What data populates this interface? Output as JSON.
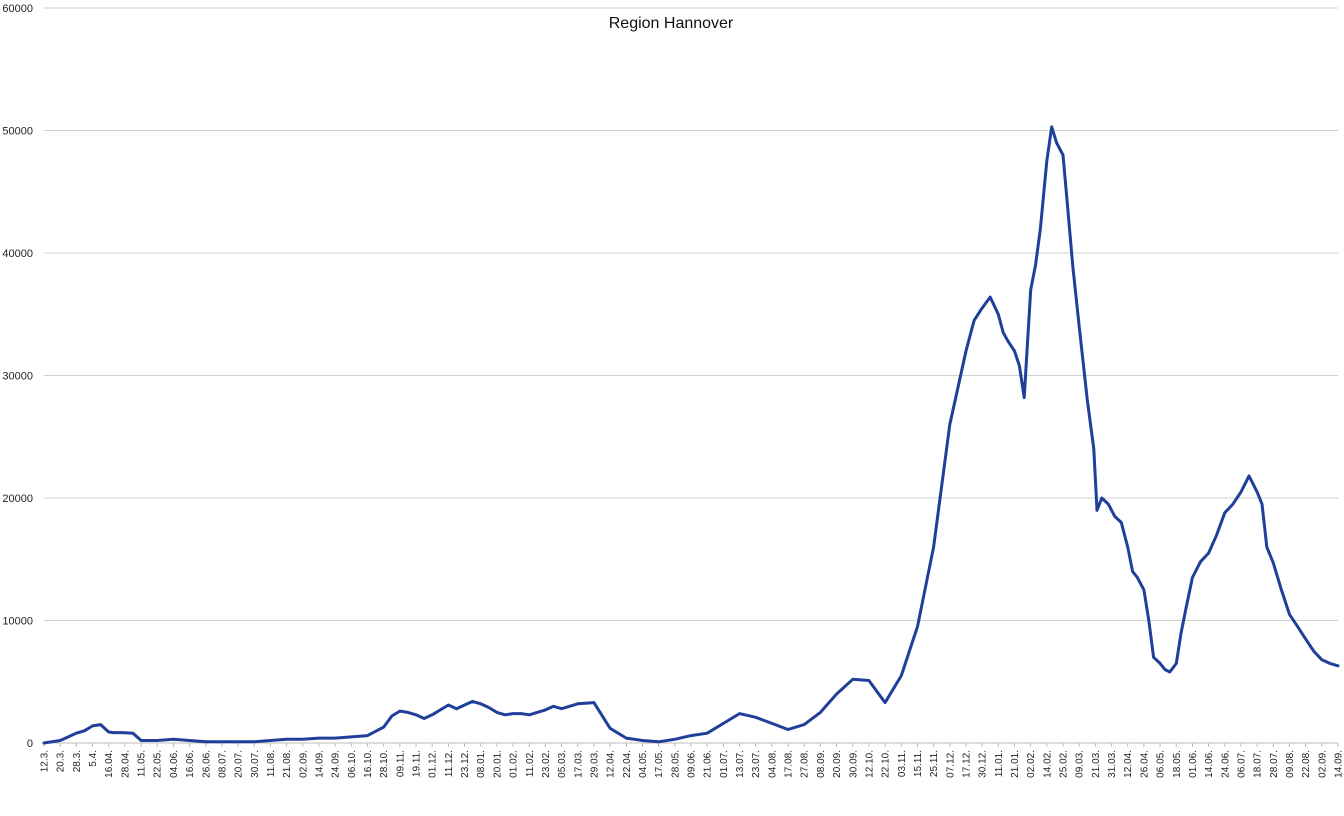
{
  "chart_data": {
    "type": "line",
    "title": "Region Hannover",
    "xlabel": "",
    "ylabel": "",
    "ylim": [
      0,
      60000
    ],
    "yticks": [
      0,
      10000,
      20000,
      30000,
      40000,
      50000,
      60000
    ],
    "grid": true,
    "legend": "none",
    "line_color": "#1f3f9a",
    "x_tick_labels": [
      "12.3.",
      "20.3.",
      "28.3.",
      "5.4.",
      "16.04.",
      "28.04.",
      "11.05.",
      "22.05.",
      "04.06.",
      "16.06.",
      "26.06.",
      "08.07.",
      "20.07.",
      "30.07.",
      "11.08.",
      "21.08.",
      "02.09.",
      "14.09.",
      "24.09.",
      "06.10.",
      "16.10.",
      "28.10.",
      "09.11.",
      "19.11.",
      "01.12.",
      "11.12.",
      "23.12.",
      "08.01.",
      "20.01.",
      "01.02.",
      "11.02.",
      "23.02.",
      "05.03.",
      "17.03.",
      "29.03.",
      "12.04.",
      "22.04.",
      "04.05.",
      "17.05.",
      "28.05.",
      "09.06.",
      "21.06.",
      "01.07.",
      "13.07.",
      "23.07.",
      "04.08.",
      "17.08.",
      "27.08.",
      "08.09.",
      "20.09.",
      "30.09.",
      "12.10.",
      "22.10.",
      "03.11.",
      "15.11.",
      "25.11.",
      "07.12.",
      "17.12.",
      "30.12.",
      "11.01.",
      "21.01.",
      "02.02.",
      "14.02.",
      "25.02.",
      "09.03.",
      "21.03.",
      "31.03.",
      "12.04.",
      "26.04.",
      "06.05.",
      "18.05.",
      "01.06.",
      "14.06.",
      "24.06.",
      "06.07.",
      "18.07.",
      "28.07.",
      "09.08.",
      "22.08.",
      "02.09.",
      "14.09."
    ],
    "series": [
      {
        "x": [
          0,
          1,
          1.5,
          2,
          2.5,
          3,
          3.5,
          4,
          4.3,
          4.8,
          5.5,
          6,
          6.5,
          7,
          8,
          9,
          10,
          11,
          12,
          13,
          14,
          15,
          16,
          17,
          18,
          19,
          20,
          21,
          21.5,
          22,
          22.5,
          23,
          23.5,
          24,
          25,
          25.5,
          26,
          26.5,
          27,
          27.5,
          28,
          28.5,
          29,
          29.5,
          30,
          31,
          31.5,
          32,
          33,
          34,
          35,
          36,
          37,
          38,
          39,
          40,
          41,
          42,
          43,
          44,
          45,
          46,
          47,
          48,
          49,
          50,
          51,
          52,
          53,
          54,
          55,
          56,
          56.5,
          57,
          57.5,
          58,
          58.5,
          59,
          59.3,
          59.6,
          60,
          60.3,
          60.6,
          61,
          61.3,
          61.6,
          62,
          62.3,
          62.6,
          63,
          63.3,
          63.6,
          64,
          64.5,
          64.9,
          65.1,
          65.4,
          65.8,
          66.2,
          66.6,
          67,
          67.3,
          67.6,
          68,
          68.3,
          68.6,
          69,
          69.3,
          69.6,
          70,
          70.3,
          70.6,
          71,
          71.5,
          72,
          72.5,
          73,
          73.5,
          74,
          74.5,
          75,
          75.3,
          75.6,
          76,
          76.5,
          77,
          77.5,
          78,
          78.5,
          79,
          79.5,
          80
        ],
        "y": [
          0,
          200,
          500,
          800,
          1000,
          1400,
          1500,
          900,
          850,
          850,
          800,
          200,
          200,
          200,
          300,
          200,
          100,
          100,
          100,
          100,
          200,
          300,
          300,
          400,
          400,
          500,
          600,
          1300,
          2200,
          2600,
          2500,
          2300,
          2000,
          2300,
          3100,
          2800,
          3100,
          3400,
          3200,
          2900,
          2500,
          2300,
          2400,
          2400,
          2300,
          2700,
          3000,
          2800,
          3200,
          3300,
          1200,
          400,
          200,
          100,
          300,
          600,
          800,
          1600,
          2400,
          2100,
          1600,
          1100,
          1500,
          2500,
          4000,
          5200,
          5100,
          3300,
          5500,
          9500,
          16000,
          26000,
          29000,
          32000,
          34500,
          35500,
          36400,
          35000,
          33500,
          32800,
          32000,
          30800,
          28200,
          37000,
          39000,
          42000,
          47500,
          50300,
          49000,
          48000,
          43500,
          39000,
          34000,
          28000,
          24000,
          19000,
          20000,
          19500,
          18500,
          18000,
          16000,
          14000,
          13500,
          12500,
          10000,
          7000,
          6500,
          6000,
          5800,
          6500,
          9000,
          11000,
          13500,
          14800,
          15500,
          17000,
          18800,
          19500,
          20500,
          21800,
          20500,
          19500,
          16000,
          14700,
          12500,
          10500,
          9500,
          8500,
          7500,
          6800,
          6500,
          6300
        ]
      }
    ]
  }
}
